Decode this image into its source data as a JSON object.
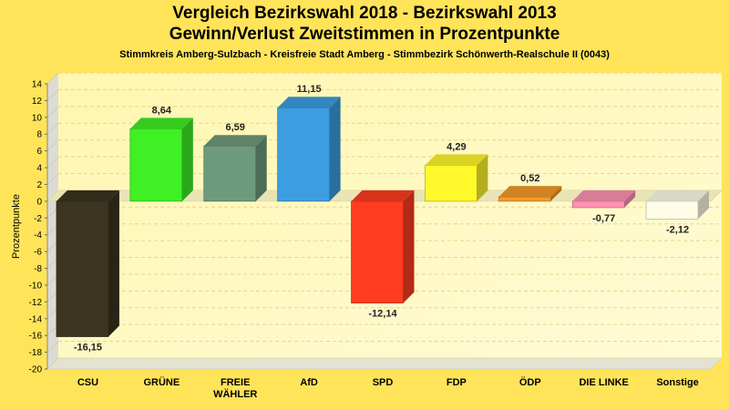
{
  "header": {
    "title_line1": "Vergleich Bezirkswahl 2018 - Bezirkswahl 2013",
    "title_line2": "Gewinn/Verlust Zweitstimmen in Prozentpunkte",
    "subtitle": "Stimmkreis Amberg-Sulzbach - Kreisfreie Stadt Amberg - Stimmbezirk Schönwerth-Realschule II (0043)"
  },
  "chart_data": {
    "type": "bar",
    "title": "Vergleich Bezirkswahl 2018 - Bezirkswahl 2013 / Gewinn/Verlust Zweitstimmen in Prozentpunkte",
    "subtitle": "Stimmkreis Amberg-Sulzbach - Kreisfreie Stadt Amberg - Stimmbezirk Schönwerth-Realschule II (0043)",
    "xlabel": "",
    "ylabel": "Prozentpunkte",
    "ylim": [
      -20,
      14
    ],
    "yticks": [
      14,
      12,
      10,
      8,
      6,
      4,
      2,
      0,
      -2,
      -4,
      -6,
      -8,
      -10,
      -12,
      -14,
      -16,
      -18,
      -20
    ],
    "grid": true,
    "categories": [
      [
        "CSU"
      ],
      [
        "GRÜNE"
      ],
      [
        "FREIE",
        "WÄHLER"
      ],
      [
        "AfD"
      ],
      [
        "SPD"
      ],
      [
        "FDP"
      ],
      [
        "ÖDP"
      ],
      [
        "DIE LINKE"
      ],
      [
        "Sonstige"
      ]
    ],
    "values": [
      -16.15,
      8.64,
      6.59,
      11.15,
      -12.14,
      4.29,
      0.52,
      -0.77,
      -2.12
    ],
    "value_labels": [
      "-16,15",
      "8,64",
      "6,59",
      "11,15",
      "-12,14",
      "4,29",
      "0,52",
      "-0,77",
      "-2,12"
    ],
    "colors": [
      "#3b3420",
      "#3ef024",
      "#6e9a7c",
      "#3c9ee0",
      "#ff3c20",
      "#fff82a",
      "#f59a2a",
      "#ff92b4",
      "#fffde8"
    ]
  }
}
